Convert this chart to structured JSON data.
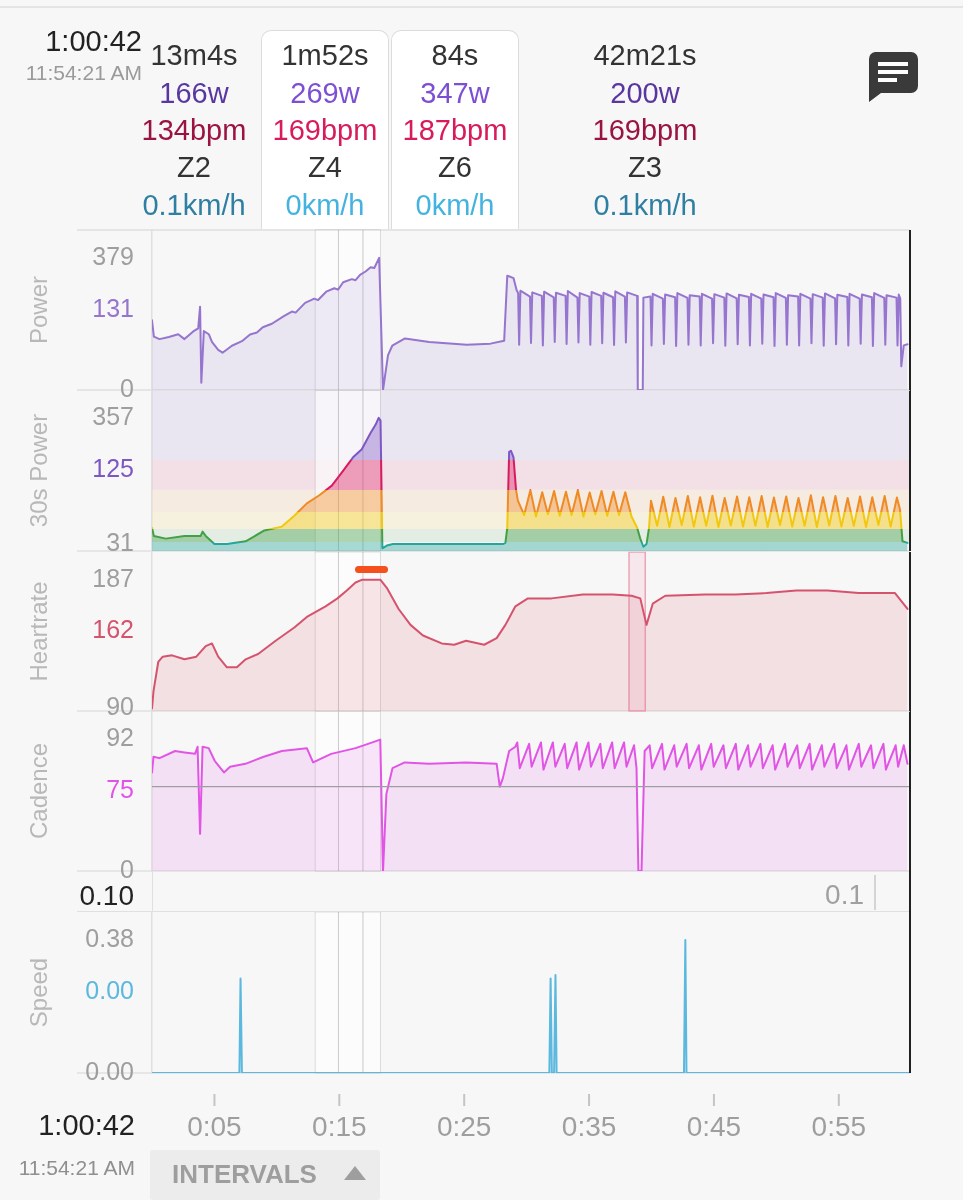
{
  "chart_data": [
    {
      "type": "other",
      "annotations": [
        "1:00:42",
        "11:54:21 AM",
        "13m4s",
        "166w",
        "134bpm",
        "Z2",
        "0.1km/h",
        "1m52s",
        "269w",
        "169bpm",
        "Z4",
        "0km/h",
        "84s",
        "347w",
        "187bpm",
        "Z6",
        "0km/h",
        "42m21s",
        "200w",
        "169bpm",
        "Z3",
        "0.1km/h"
      ]
    },
    {
      "type": "area",
      "ylabel": "Power",
      "color": "#9575cd",
      "tick_labels": "y",
      "xlim": [
        0,
        60.7
      ],
      "ylim": [
        0,
        459
      ],
      "yticks": [
        0,
        379
      ],
      "annotations": [
        "131"
      ],
      "bands": [
        {
          "axis": "x",
          "from": 13.07,
          "to": 14.93,
          "color": "#ffffff"
        },
        {
          "axis": "x",
          "from": 14.93,
          "to": 16.9,
          "color": "#ffffff"
        },
        {
          "axis": "x",
          "from": 16.9,
          "to": 18.3,
          "color": "#ffffff"
        }
      ],
      "ref_lines": [
        {
          "axis": "x",
          "value": 60.7,
          "color": "#212121"
        }
      ],
      "x": [
        0,
        0.15,
        0.6,
        1.35,
        2.1,
        2.6,
        3.3,
        3.7,
        3.85,
        3.95,
        4.15,
        4.55,
        4.8,
        5.3,
        5.65,
        6.4,
        7.2,
        7.85,
        8.4,
        8.87,
        9.6,
        10.56,
        11.2,
        11.5,
        12.26,
        13,
        13.3,
        13.95,
        14.6,
        14.9,
        15.31,
        16,
        16.3,
        16.66,
        17.1,
        17.51,
        17.8,
        18.19,
        18.5,
        18.9,
        19.24,
        20.26,
        22.2,
        25.2,
        27.1,
        28.2,
        28.45,
        28.95,
        29.2,
        29.32,
        29.4,
        29.5,
        30.27,
        30.35,
        30.45,
        31.22,
        31.3,
        31.4,
        32.17,
        32.25,
        32.35,
        33.12,
        33.2,
        33.3,
        34.07,
        34.15,
        34.25,
        35.02,
        35.1,
        35.2,
        35.97,
        36.05,
        36.15,
        36.92,
        37,
        37.1,
        37.87,
        37.95,
        38.05,
        38.85,
        38.9,
        39.3,
        39.35,
        39.92,
        40,
        40.1,
        40.91,
        40.99,
        41.09,
        41.89,
        41.97,
        42.07,
        42.88,
        42.96,
        43.06,
        43.86,
        43.94,
        44.04,
        44.85,
        44.93,
        45.03,
        45.83,
        45.91,
        46.01,
        46.82,
        46.9,
        47,
        47.8,
        47.88,
        47.98,
        48.79,
        48.87,
        48.97,
        49.77,
        49.85,
        49.95,
        50.76,
        50.84,
        50.94,
        51.74,
        51.82,
        51.92,
        52.73,
        52.81,
        52.91,
        53.71,
        53.79,
        53.89,
        54.7,
        54.78,
        54.88,
        55.68,
        55.76,
        55.86,
        56.67,
        56.75,
        56.85,
        57.65,
        57.73,
        57.83,
        58.64,
        58.72,
        58.82,
        59.62,
        59.7,
        59.8,
        59.92,
        60,
        60.2,
        60.5
      ],
      "values": [
        200,
        153,
        146,
        152,
        160,
        146,
        168,
        177,
        239,
        21,
        169,
        160,
        138,
        115,
        107,
        127,
        140,
        159,
        165,
        180,
        190,
        212,
        225,
        222,
        250,
        262,
        258,
        282,
        292,
        288,
        309,
        318,
        315,
        330,
        340,
        352,
        350,
        379,
        0,
        100,
        127,
        148,
        138,
        130,
        133,
        141,
        328,
        321,
        286,
        278,
        130,
        285,
        268,
        135,
        280,
        270,
        128,
        282,
        266,
        138,
        279,
        270,
        132,
        284,
        265,
        136,
        278,
        268,
        130,
        281,
        270,
        134,
        279,
        266,
        129,
        283,
        268,
        136,
        280,
        270,
        0,
        0,
        265,
        268,
        128,
        276,
        262,
        132,
        274,
        266,
        126,
        278,
        264,
        130,
        272,
        268,
        128,
        276,
        262,
        134,
        275,
        265,
        127,
        277,
        263,
        131,
        273,
        267,
        128,
        276,
        262,
        133,
        274,
        266,
        126,
        278,
        264,
        130,
        272,
        268,
        128,
        276,
        262,
        134,
        275,
        265,
        127,
        277,
        263,
        131,
        273,
        267,
        128,
        276,
        262,
        133,
        274,
        266,
        126,
        278,
        264,
        130,
        272,
        265,
        128,
        274,
        262,
        68,
        128,
        131
      ]
    },
    {
      "type": "area",
      "ylabel": "30s Power",
      "color": "#26a69a",
      "tick_labels": "y",
      "xlim": [
        0,
        60.7
      ],
      "ylim": [
        13,
        429
      ],
      "yticks": [
        31,
        357
      ],
      "annotations": [
        "125"
      ],
      "bands": [
        {
          "axis": "y",
          "from": 36,
          "to": 70,
          "color": "#43a047"
        },
        {
          "axis": "y",
          "from": 70,
          "to": 113,
          "color": "#f2c70f"
        },
        {
          "axis": "y",
          "from": 113,
          "to": 171,
          "color": "#f08a24"
        },
        {
          "axis": "y",
          "from": 171,
          "to": 248,
          "color": "#d81b60"
        },
        {
          "axis": "y",
          "from": 248,
          "to": 429,
          "color": "#7e57c2"
        },
        {
          "axis": "x",
          "from": 13.07,
          "to": 14.93,
          "color": "#ffffff"
        },
        {
          "axis": "x",
          "from": 14.93,
          "to": 16.9,
          "color": "#ffffff"
        },
        {
          "axis": "x",
          "from": 16.9,
          "to": 18.3,
          "color": "#ffffff"
        }
      ],
      "ref_lines": [
        {
          "axis": "x",
          "value": 60.7,
          "color": "#212121"
        }
      ],
      "x": [
        0,
        0.15,
        1.1,
        2.6,
        3.9,
        4.05,
        4.3,
        5,
        6,
        7.5,
        9,
        10.4,
        11.4,
        12.4,
        13.4,
        14.4,
        15.3,
        16.1,
        16.8,
        17.5,
        17.9,
        18.15,
        18.3,
        18.45,
        18.8,
        19.3,
        28.1,
        28.3,
        28.45,
        28.6,
        28.75,
        28.95,
        29.15,
        29.3,
        29.8,
        30.3,
        30.75,
        31.25,
        31.7,
        32.2,
        32.65,
        33.15,
        33.6,
        34.1,
        34.55,
        35.05,
        35.5,
        36,
        36.45,
        36.95,
        37.4,
        37.9,
        38.4,
        38.85,
        39.1,
        39.35,
        39.6,
        39.8,
        39.96,
        40.45,
        40.94,
        41.44,
        41.92,
        42.42,
        42.91,
        43.39,
        43.89,
        44.38,
        44.88,
        45.36,
        45.86,
        46.35,
        46.85,
        47.33,
        47.83,
        48.32,
        48.82,
        49.3,
        49.8,
        50.29,
        50.79,
        51.27,
        51.77,
        52.26,
        52.76,
        53.24,
        53.74,
        54.23,
        54.73,
        55.21,
        55.71,
        56.2,
        56.7,
        57.18,
        57.68,
        58.17,
        58.67,
        59.15,
        59.65,
        59.9,
        60.1,
        60.5
      ],
      "values": [
        73,
        52,
        45,
        52,
        52,
        63,
        52,
        31,
        31,
        38,
        66,
        76,
        104,
        136,
        157,
        182,
        220,
        255,
        276,
        318,
        339,
        357,
        350,
        20,
        27,
        31,
        31,
        34,
        73,
        269,
        272,
        255,
        171,
        143,
        106,
        170,
        102,
        165,
        108,
        168,
        104,
        166,
        106,
        170,
        102,
        164,
        108,
        168,
        104,
        166,
        106,
        165,
        102,
        73,
        45,
        24,
        31,
        73,
        143,
        78,
        153,
        75,
        150,
        80,
        155,
        76,
        152,
        78,
        156,
        75,
        150,
        79,
        154,
        76,
        152,
        78,
        155,
        75,
        151,
        80,
        154,
        76,
        150,
        78,
        157,
        75,
        152,
        79,
        155,
        76,
        150,
        78,
        154,
        75,
        152,
        80,
        155,
        76,
        151,
        120,
        38,
        34
      ]
    },
    {
      "type": "area",
      "ylabel": "Heartrate",
      "color": "#d6536d",
      "tick_labels": "y",
      "xlim": [
        0,
        60.7
      ],
      "ylim": [
        88,
        208
      ],
      "yticks": [
        90,
        187
      ],
      "annotations": [
        "162"
      ],
      "bands": [
        {
          "axis": "x",
          "from": 13.07,
          "to": 14.93,
          "color": "#ffffff"
        },
        {
          "axis": "x",
          "from": 14.93,
          "to": 16.9,
          "color": "#ffffff"
        },
        {
          "axis": "x",
          "from": 16.9,
          "to": 18.3,
          "color": "#ffffff"
        },
        {
          "axis": "x",
          "from": 38.2,
          "to": 39.5,
          "color": "#eea3b5"
        }
      ],
      "ref_lines": [
        {
          "axis": "x",
          "value": 60.7,
          "color": "#212121"
        }
      ],
      "x": [
        0,
        0.12,
        0.5,
        0.86,
        1.6,
        2.6,
        3.55,
        4.3,
        4.8,
        5.3,
        6,
        6.8,
        7.5,
        8.5,
        9.9,
        11.4,
        12.4,
        13.9,
        14.85,
        15.6,
        16.3,
        16.8,
        18.3,
        18.8,
        19.75,
        20.7,
        21.7,
        23.2,
        24.2,
        25.15,
        26.6,
        27.6,
        28.3,
        29.1,
        30.1,
        32,
        34.5,
        36.9,
        38.4,
        39.1,
        39.6,
        40.1,
        41.1,
        44.3,
        46.7,
        49.2,
        51.6,
        54.1,
        56.6,
        59.5,
        60.5
      ],
      "values": [
        90,
        103,
        125,
        129,
        130,
        127,
        129,
        137,
        139,
        129,
        121,
        121,
        127,
        131,
        141,
        151,
        159,
        167,
        173,
        179,
        185,
        187,
        187,
        181,
        165,
        153,
        145,
        139,
        138,
        141,
        138,
        143,
        153,
        167,
        173,
        173,
        176,
        176,
        175,
        173,
        153,
        169,
        175,
        176,
        176,
        177,
        179,
        179,
        177,
        177,
        165
      ]
    },
    {
      "type": "area",
      "ylabel": "Cadence",
      "color": "#e254e6",
      "tick_labels": "y",
      "xlim": [
        0,
        60.7
      ],
      "ylim": [
        0,
        112
      ],
      "yticks": [
        0,
        92
      ],
      "annotations": [
        "75"
      ],
      "bands": [
        {
          "axis": "x",
          "from": 13.07,
          "to": 14.93,
          "color": "#ffffff"
        },
        {
          "axis": "x",
          "from": 14.93,
          "to": 16.9,
          "color": "#ffffff"
        },
        {
          "axis": "x",
          "from": 16.9,
          "to": 18.3,
          "color": "#ffffff"
        }
      ],
      "ref_lines": [
        {
          "axis": "y",
          "value": 59,
          "color": "#9e9e9e"
        },
        {
          "axis": "x",
          "value": 60.7,
          "color": "#212121"
        }
      ],
      "x": [
        0,
        0.12,
        0.6,
        1.85,
        2.6,
        3.45,
        3.65,
        3.85,
        4.05,
        4.54,
        5.03,
        5.76,
        6.25,
        7.48,
        8.95,
        10.4,
        12.4,
        12.9,
        14.35,
        16.3,
        17.3,
        18.28,
        18.5,
        18.77,
        19.26,
        20.24,
        22.2,
        25.15,
        27.6,
        27.85,
        28.1,
        28.6,
        29.1,
        29.25,
        29.45,
        30.2,
        30.4,
        31.15,
        31.35,
        32.1,
        32.3,
        33.05,
        33.25,
        34,
        34.2,
        34.95,
        35.15,
        35.9,
        36.1,
        36.85,
        37.05,
        37.8,
        38,
        38.6,
        38.8,
        38.95,
        39.2,
        39.45,
        39.85,
        40.05,
        40.84,
        41.04,
        41.82,
        42.02,
        42.81,
        43.01,
        43.79,
        43.99,
        44.78,
        44.98,
        45.76,
        45.96,
        46.75,
        46.95,
        47.73,
        47.93,
        48.72,
        48.92,
        49.7,
        49.9,
        50.69,
        50.89,
        51.67,
        51.87,
        52.66,
        52.86,
        53.64,
        53.84,
        54.63,
        54.83,
        55.61,
        55.81,
        56.6,
        56.8,
        57.58,
        57.78,
        58.57,
        58.77,
        59.55,
        59.75,
        60.2,
        60.5
      ],
      "values": [
        69,
        80,
        79,
        84,
        83,
        82,
        87,
        26,
        87,
        86,
        77,
        69,
        73,
        75,
        80,
        84,
        86,
        76,
        82,
        86,
        89,
        92,
        0,
        54,
        72,
        76,
        75,
        76,
        75,
        59,
        65,
        84,
        87,
        90,
        72,
        89,
        73,
        90,
        71,
        90,
        73,
        89,
        72,
        90,
        71,
        90,
        73,
        89,
        72,
        90,
        72,
        90,
        73,
        88,
        72,
        0,
        0,
        84,
        88,
        72,
        89,
        71,
        88,
        73,
        89,
        72,
        88,
        71,
        89,
        73,
        88,
        72,
        89,
        71,
        88,
        73,
        89,
        72,
        88,
        71,
        89,
        73,
        88,
        72,
        89,
        71,
        88,
        73,
        89,
        72,
        88,
        71,
        89,
        73,
        88,
        72,
        89,
        71,
        88,
        73,
        88,
        75
      ]
    },
    {
      "type": "other",
      "annotations": [
        "0.10",
        "0.1"
      ]
    },
    {
      "type": "line",
      "ylabel": "Speed",
      "color": "#5bb8de",
      "xlim": [
        0,
        60.7
      ],
      "ylim": [
        0,
        0.46
      ],
      "yticks": [
        {
          "value": 0,
          "label": "0.00"
        },
        0.38
      ],
      "annotations": [
        "0.00"
      ],
      "xticks": [
        {
          "value": 5,
          "label": "0:05"
        },
        {
          "value": 15,
          "label": "0:15"
        },
        {
          "value": 25,
          "label": "0:25"
        },
        {
          "value": 35,
          "label": "0:35"
        },
        {
          "value": 45,
          "label": "0:45"
        },
        {
          "value": 55,
          "label": "0:55"
        }
      ],
      "bands": [
        {
          "axis": "x",
          "from": 13.07,
          "to": 14.93,
          "color": "#ffffff"
        },
        {
          "axis": "x",
          "from": 14.93,
          "to": 16.9,
          "color": "#ffffff"
        },
        {
          "axis": "x",
          "from": 16.9,
          "to": 18.3,
          "color": "#ffffff"
        }
      ],
      "ref_lines": [
        {
          "axis": "x",
          "value": 60.7,
          "color": "#212121"
        }
      ],
      "x": [
        0,
        7,
        7.09,
        7.2,
        31.82,
        31.92,
        32.02,
        32.2,
        32.31,
        32.4,
        42.6,
        42.71,
        42.8,
        60.7
      ],
      "values": [
        0,
        0,
        0.27,
        0,
        0,
        0.27,
        0,
        0,
        0.28,
        0,
        0,
        0.38,
        0,
        0
      ]
    },
    {
      "type": "other",
      "annotations": [
        "1:00:42",
        "11:54:21 AM",
        "INTERVALS"
      ]
    }
  ]
}
